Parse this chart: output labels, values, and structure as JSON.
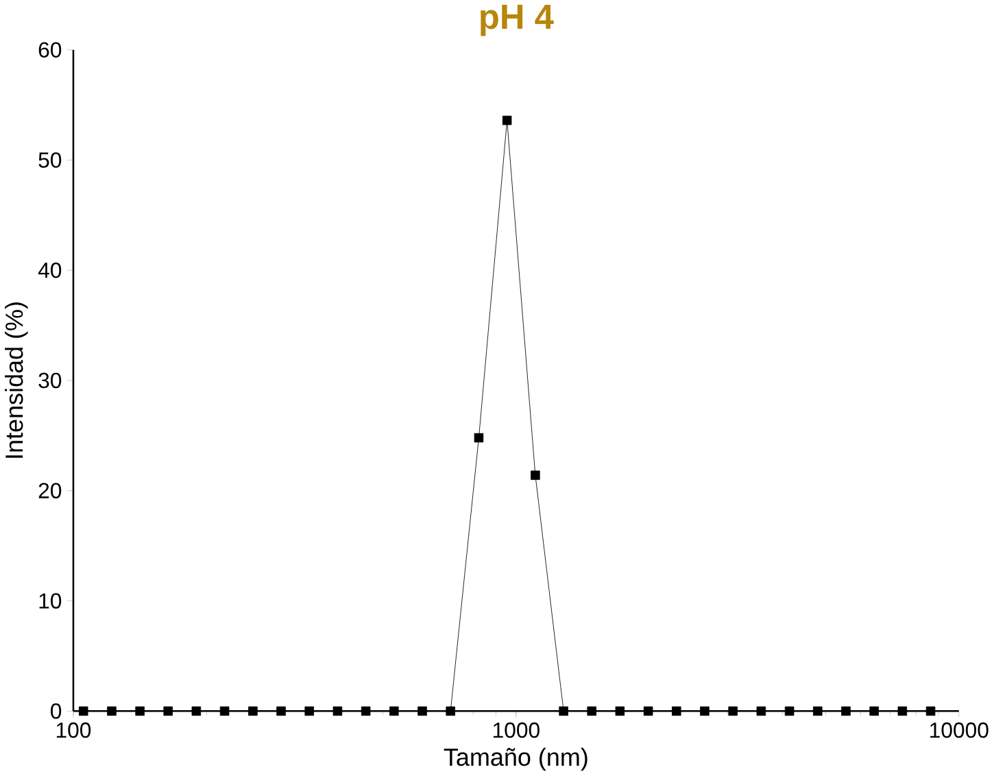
{
  "chart_data": {
    "type": "line",
    "title": "pH 4",
    "xlabel": "Tamaño (nm)",
    "ylabel": "Intensidad (%)",
    "log": "x",
    "marker": "square",
    "line_style": "solid",
    "grid": false,
    "x": [
      105.4,
      122.1,
      141.4,
      163.7,
      189.6,
      219.6,
      254.4,
      294.6,
      341.2,
      395.2,
      457.7,
      530.1,
      614.0,
      711.1,
      823.6,
      953.9,
      1105,
      1280,
      1482,
      1716,
      1988,
      2302,
      2666,
      3088,
      3577,
      4143,
      4798,
      5557,
      6436,
      7454,
      8633
    ],
    "series": [
      {
        "color": "#000000",
        "values": [
          0,
          0,
          0,
          0,
          0,
          0,
          0,
          0,
          0,
          0,
          0,
          0,
          0,
          0,
          24.8,
          53.6,
          21.4,
          0,
          0,
          0,
          0,
          0,
          0,
          0,
          0,
          0,
          0,
          0,
          0,
          0,
          0
        ]
      }
    ],
    "xlim": [
      100,
      10000
    ],
    "xticks": [
      100,
      1000,
      10000
    ],
    "ylim": [
      0,
      60
    ],
    "yticks": [
      0,
      10,
      20,
      30,
      40,
      50,
      60
    ]
  }
}
